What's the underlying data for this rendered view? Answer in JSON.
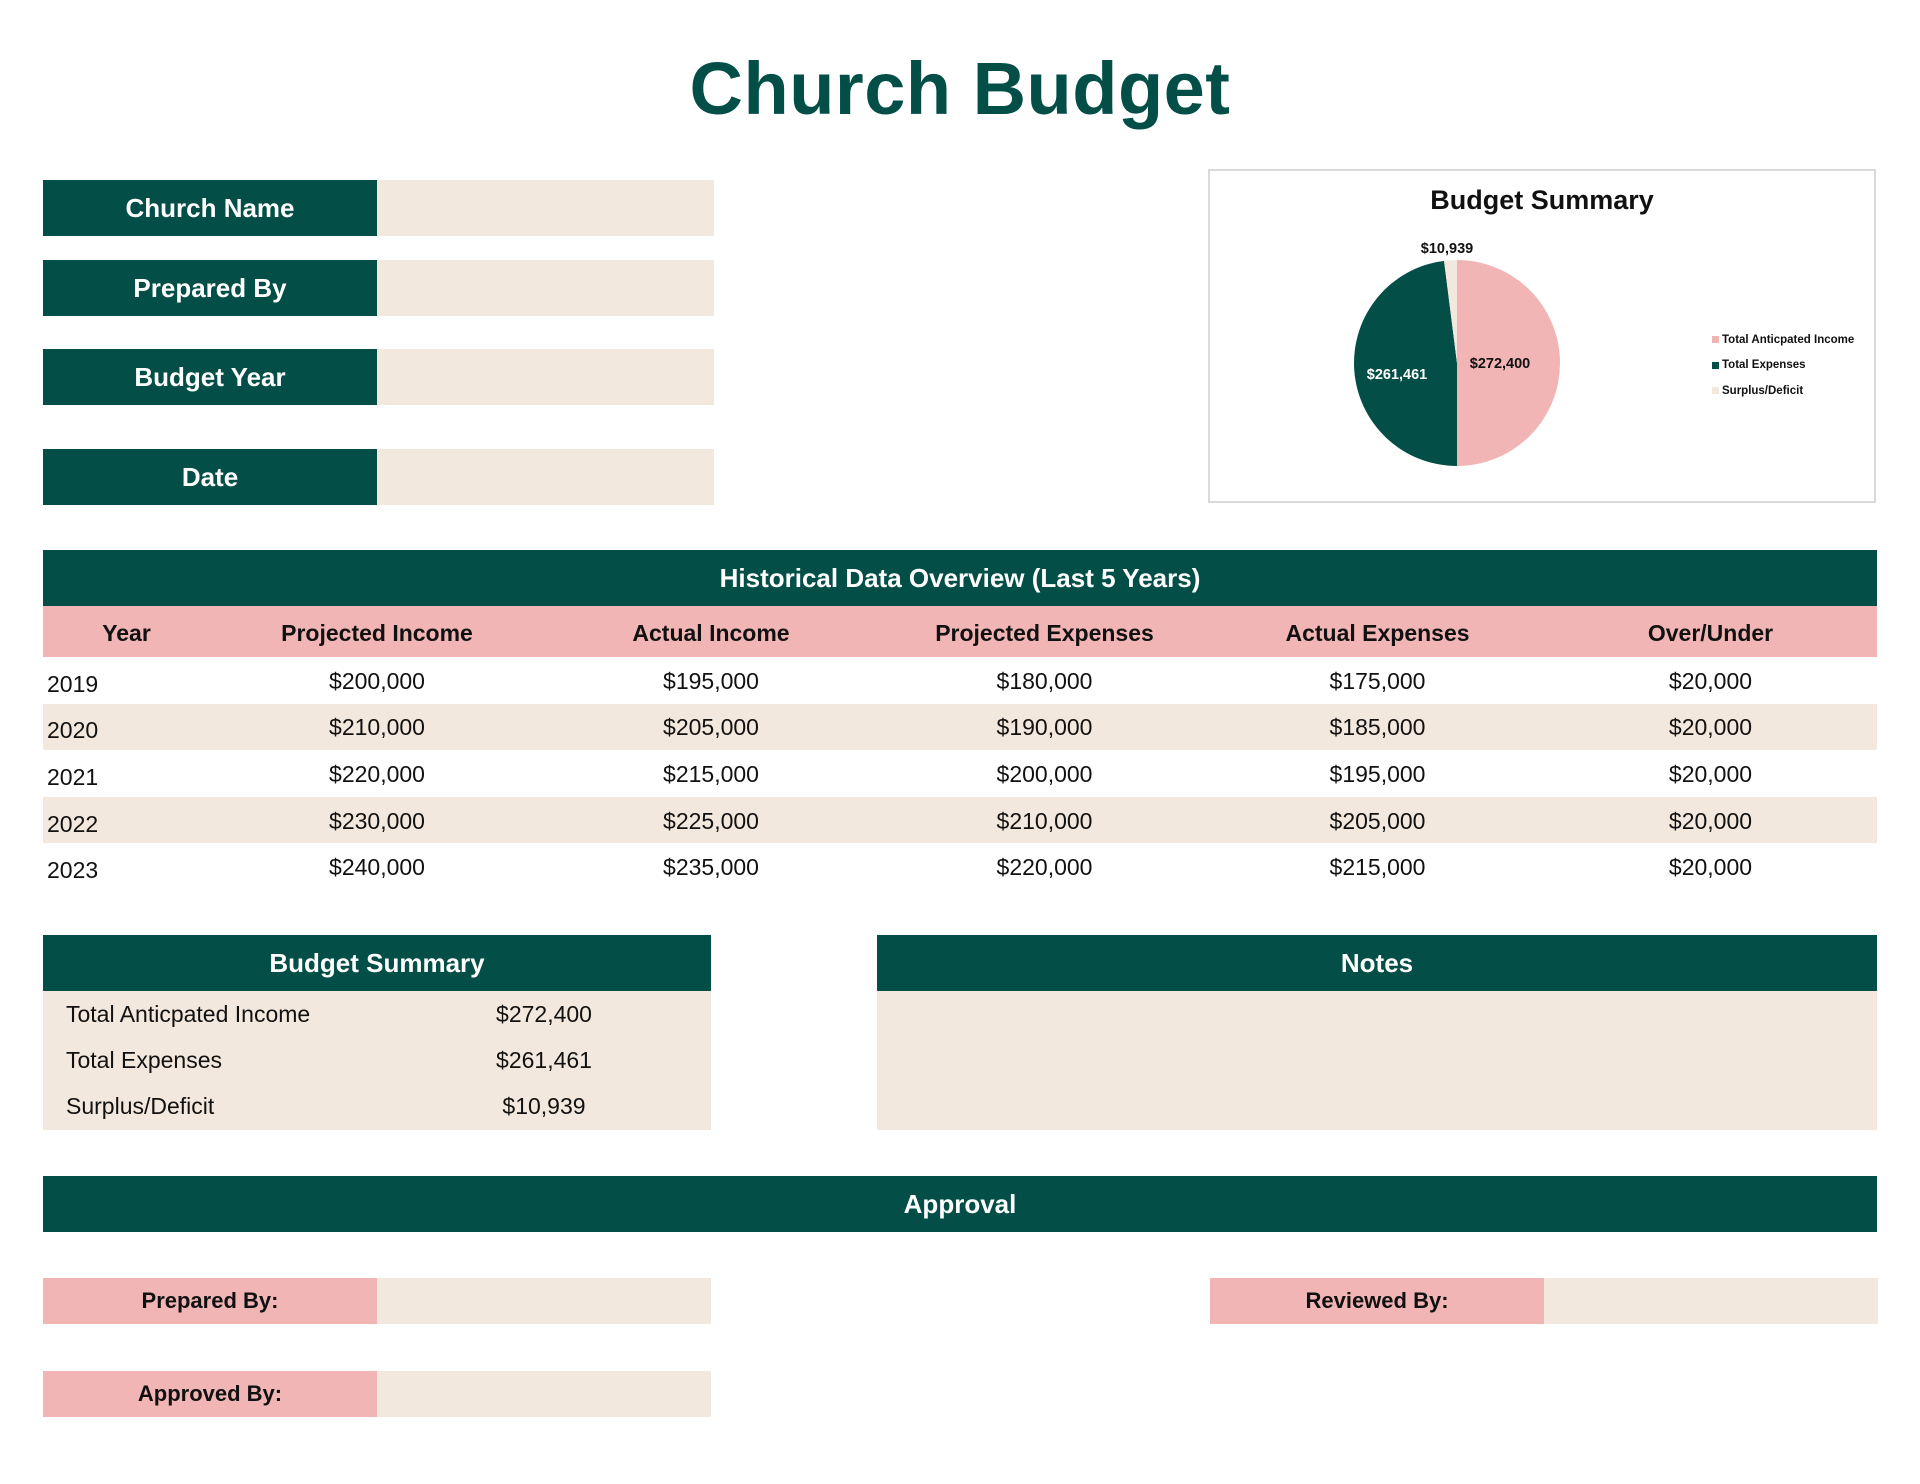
{
  "page": {
    "title": "Church Budget"
  },
  "colors": {
    "primary": "#034F47",
    "accent_pink": "#F2B5B5",
    "field_beige": "#F3E8DD",
    "chart_border": "#DADADA"
  },
  "info_fields": [
    {
      "label": "Church Name",
      "value": ""
    },
    {
      "label": "Prepared By",
      "value": ""
    },
    {
      "label": "Budget Year",
      "value": ""
    },
    {
      "label": "Date",
      "value": ""
    }
  ],
  "chart_data": {
    "type": "pie",
    "title": "Budget Summary",
    "categories": [
      "Total Anticpated Income",
      "Total Expenses",
      "Surplus/Deficit"
    ],
    "values": [
      272400,
      261461,
      10939
    ],
    "labels": [
      "$272,400",
      "$261,461",
      "$10,939"
    ],
    "colors": [
      "#F2B5B5",
      "#034F47",
      "#F3E8DD"
    ],
    "legend_position": "right"
  },
  "historical": {
    "title": "Historical Data Overview (Last 5 Years)",
    "columns": [
      "Year",
      "Projected Income",
      "Actual Income",
      "Projected Expenses",
      "Actual Expenses",
      "Over/Under"
    ],
    "rows": [
      [
        "2019",
        "$200,000",
        "$195,000",
        "$180,000",
        "$175,000",
        "$20,000"
      ],
      [
        "2020",
        "$210,000",
        "$205,000",
        "$190,000",
        "$185,000",
        "$20,000"
      ],
      [
        "2021",
        "$220,000",
        "$215,000",
        "$200,000",
        "$195,000",
        "$20,000"
      ],
      [
        "2022",
        "$230,000",
        "$225,000",
        "$210,000",
        "$205,000",
        "$20,000"
      ],
      [
        "2023",
        "$240,000",
        "$235,000",
        "$220,000",
        "$215,000",
        "$20,000"
      ]
    ]
  },
  "budget_summary": {
    "title": "Budget Summary",
    "rows": [
      {
        "label": "Total Anticpated Income",
        "value": "$272,400"
      },
      {
        "label": "Total Expenses",
        "value": "$261,461"
      },
      {
        "label": "Surplus/Deficit",
        "value": "$10,939"
      }
    ]
  },
  "notes": {
    "title": "Notes",
    "value": ""
  },
  "approval": {
    "title": "Approval",
    "prepared_by_label": "Prepared By:",
    "reviewed_by_label": "Reviewed By:",
    "approved_by_label": "Approved By:",
    "prepared_by_value": "",
    "reviewed_by_value": "",
    "approved_by_value": ""
  }
}
